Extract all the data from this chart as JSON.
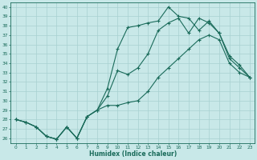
{
  "xlabel": "Humidex (Indice chaleur)",
  "background_color": "#c8e8e8",
  "grid_color": "#a8d0d0",
  "line_color": "#1a6b5a",
  "xlim": [
    -0.5,
    23.5
  ],
  "ylim": [
    25.5,
    40.5
  ],
  "yticks": [
    26,
    27,
    28,
    29,
    30,
    31,
    32,
    33,
    34,
    35,
    36,
    37,
    38,
    39,
    40
  ],
  "xticks": [
    0,
    1,
    2,
    3,
    4,
    5,
    6,
    7,
    8,
    9,
    10,
    11,
    12,
    13,
    14,
    15,
    16,
    17,
    18,
    19,
    20,
    21,
    22,
    23
  ],
  "x": [
    0,
    1,
    2,
    3,
    4,
    5,
    6,
    7,
    8,
    9,
    10,
    11,
    12,
    13,
    14,
    15,
    16,
    17,
    18,
    19,
    20,
    21,
    22,
    23
  ],
  "y_top": [
    28.0,
    27.7,
    27.2,
    26.2,
    25.9,
    27.2,
    26.0,
    28.3,
    29.0,
    31.3,
    35.5,
    37.8,
    38.0,
    38.3,
    38.5,
    40.0,
    39.0,
    38.8,
    37.5,
    38.5,
    37.2,
    34.8,
    33.8,
    32.5
  ],
  "y_mid": [
    28.0,
    27.7,
    27.2,
    26.2,
    25.9,
    27.2,
    26.0,
    28.3,
    29.0,
    30.5,
    33.2,
    32.8,
    33.5,
    35.0,
    37.5,
    38.3,
    38.8,
    37.2,
    38.8,
    38.3,
    37.2,
    34.5,
    33.5,
    32.5
  ],
  "y_bot": [
    28.0,
    27.7,
    27.2,
    26.2,
    25.9,
    27.2,
    26.0,
    28.3,
    29.0,
    29.5,
    29.5,
    29.8,
    30.0,
    31.0,
    32.5,
    33.5,
    34.5,
    35.5,
    36.5,
    37.0,
    36.5,
    34.0,
    33.0,
    32.5
  ]
}
